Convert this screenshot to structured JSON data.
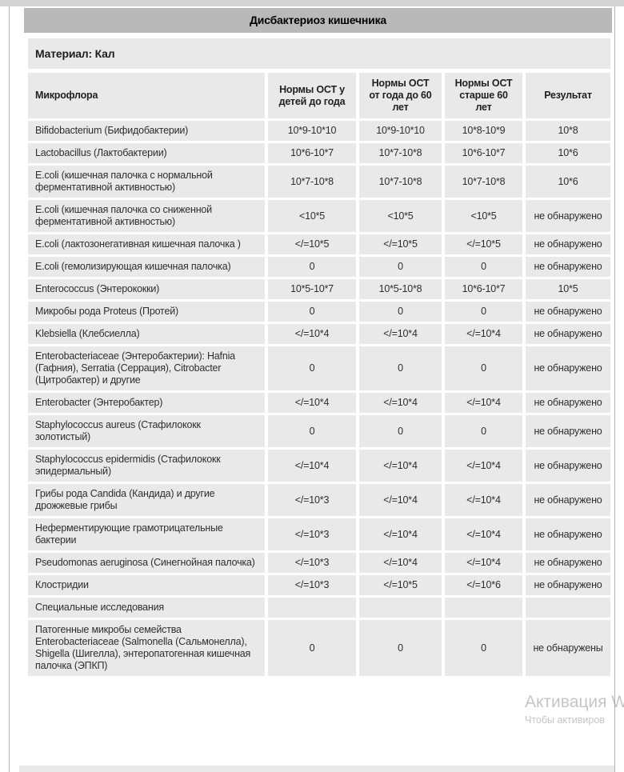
{
  "page": {
    "title": "Дисбактериоз кишечника",
    "material": "Материал: Кал"
  },
  "colors": {
    "title_bar": "#b9b9b9",
    "cell_background": "#e9e9e9",
    "watermark_text": "#c8c8c8"
  },
  "table": {
    "headers": [
      "Микрофлора",
      "Нормы ОСТ у детей до года",
      "Нормы ОСТ от года до 60 лет",
      "Нормы ОСТ старше 60 лет",
      "Результат"
    ],
    "rows": [
      [
        "Bifidobacterium (Бифидобактерии)",
        "10*9-10*10",
        "10*9-10*10",
        "10*8-10*9",
        "10*8"
      ],
      [
        "Lactobacillus (Лактобактерии)",
        "10*6-10*7",
        "10*7-10*8",
        "10*6-10*7",
        "10*6"
      ],
      [
        "E.coli (кишечная палочка с нормальной ферментативной активностью)",
        "10*7-10*8",
        "10*7-10*8",
        "10*7-10*8",
        "10*6"
      ],
      [
        "E.coli (кишечная палочка со сниженной ферментативной активностью)",
        "<10*5",
        "<10*5",
        "<10*5",
        "не обнаружено"
      ],
      [
        "E.coli (лактозонегативная кишечная палочка )",
        "</=10*5",
        "</=10*5",
        "</=10*5",
        "не обнаружено"
      ],
      [
        "E.coli (гемолизирующая кишечная палочка)",
        "0",
        "0",
        "0",
        "не обнаружено"
      ],
      [
        "Enterococcus (Энтерококки)",
        "10*5-10*7",
        "10*5-10*8",
        "10*6-10*7",
        "10*5"
      ],
      [
        "Микробы рода Proteus (Протей)",
        "0",
        "0",
        "0",
        "не обнаружено"
      ],
      [
        "Klebsiella (Клебсиелла)",
        "</=10*4",
        "</=10*4",
        "</=10*4",
        "не обнаружено"
      ],
      [
        "Enterobacteriaceae (Энтеробактерии): Hafnia (Гафния), Serratia (Серрация), Citrobacter (Цитробактер) и другие",
        "0",
        "0",
        "0",
        "не обнаружено"
      ],
      [
        "Enterobacter (Энтеробактер)",
        "</=10*4",
        "</=10*4",
        "</=10*4",
        "не обнаружено"
      ],
      [
        "Staphylococcus aureus (Стафилококк золотистый)",
        "0",
        "0",
        "0",
        "не обнаружено"
      ],
      [
        "Staphylococcus epidermidis (Стафилококк эпидермальный)",
        "</=10*4",
        "</=10*4",
        "</=10*4",
        "не обнаружено"
      ],
      [
        "Грибы рода Candida (Кандида) и другие дрожжевые грибы",
        "</=10*3",
        "</=10*4",
        "</=10*4",
        "не обнаружено"
      ],
      [
        "Неферментирующие грамотрицательные бактерии",
        "</=10*3",
        "</=10*4",
        "</=10*4",
        "не обнаружено"
      ],
      [
        "Pseudomonas aeruginosa (Синегнойная палочка)",
        "</=10*3",
        "</=10*4",
        "</=10*4",
        "не обнаружено"
      ],
      [
        "Клостридии",
        "</=10*3",
        "</=10*5",
        "</=10*6",
        "не обнаружено"
      ],
      [
        "Специальные исследования",
        "",
        "",
        "",
        ""
      ],
      [
        "Патогенные микробы семейства Enterobacteriaceae (Salmonella (Сальмонелла), Shigella (Шигелла), энтеропатогенная кишечная палочка (ЭПКП)",
        "0",
        "0",
        "0",
        "не обнаружены"
      ]
    ]
  },
  "watermark": {
    "line1": "Активация W",
    "line2": "Чтобы активиров"
  }
}
